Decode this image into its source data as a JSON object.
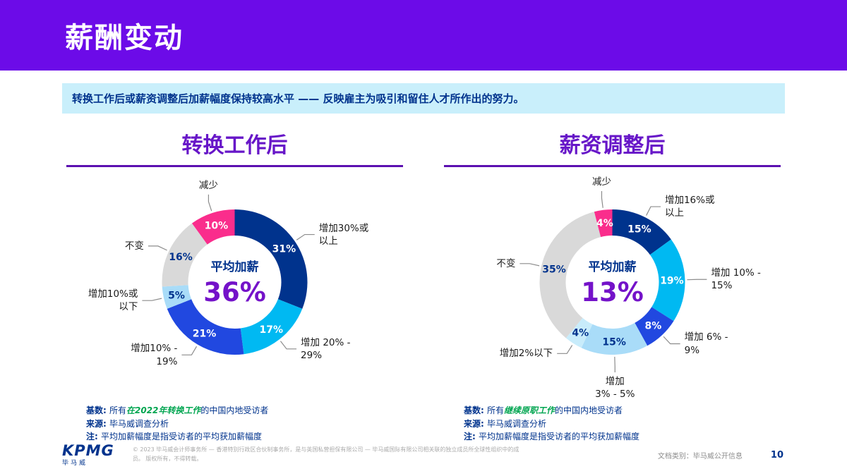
{
  "header": {
    "title": "薪酬变动"
  },
  "subtitle": "转换工作后或薪资调整后加薪幅度保持较高水平 —— 反映雇主为吸引和留住人才所作出的努力。",
  "colors": {
    "header_purple": "#6C0BE8",
    "title_purple": "#6716C8",
    "value_purple": "#7412C9",
    "kpmg_navy": "#00338D",
    "subtitle_bg": "#C9EFFB",
    "highlight_green": "#00A550",
    "pink": "#FA2D8C",
    "cyan": "#00B9F2",
    "mid_blue": "#2148E0",
    "pale_blue": "#A9DCF8",
    "gray": "#D9D9D9"
  },
  "chart_data": [
    {
      "type": "pie",
      "subtype": "donut",
      "title": "转换工作后",
      "center_label": "平均加薪",
      "center_value": "36%",
      "segments": [
        {
          "label": "增加30%或\n以上",
          "value": 31,
          "color": "#00338D",
          "text_color": "#FFFFFF"
        },
        {
          "label": "增加 20% -\n29%",
          "value": 17,
          "color": "#00B9F2",
          "text_color": "#FFFFFF"
        },
        {
          "label": "增加10% -\n19%",
          "value": 21,
          "color": "#2148E0",
          "text_color": "#FFFFFF"
        },
        {
          "label": "增加10%或\n以下",
          "value": 5,
          "color": "#A9DCF8",
          "text_color": "#00338D"
        },
        {
          "label": "不变",
          "value": 16,
          "color": "#D9D9D9",
          "text_color": "#00338D"
        },
        {
          "label": "减少",
          "value": 10,
          "color": "#FA2D8C",
          "text_color": "#FFFFFF"
        }
      ],
      "notes": [
        {
          "parts": [
            {
              "t": "基数: ",
              "s": "b"
            },
            {
              "t": "所有"
            },
            {
              "t": "在2022年转换工作",
              "s": "h"
            },
            {
              "t": "的中国内地受访者"
            }
          ]
        },
        {
          "parts": [
            {
              "t": "来源: ",
              "s": "b"
            },
            {
              "t": "毕马威调查分析"
            }
          ]
        },
        {
          "parts": [
            {
              "t": "注: ",
              "s": "b"
            },
            {
              "t": "平均加薪幅度是指受访者的平均获加薪幅度"
            }
          ]
        }
      ]
    },
    {
      "type": "pie",
      "subtype": "donut",
      "title": "薪资调整后",
      "center_label": "平均加薪",
      "center_value": "13%",
      "segments": [
        {
          "label": "增加16%或\n以上",
          "value": 15,
          "color": "#00338D",
          "text_color": "#FFFFFF"
        },
        {
          "label": "增加 10% -\n15%",
          "value": 19,
          "color": "#00B9F2",
          "text_color": "#FFFFFF"
        },
        {
          "label": "增加 6% -\n9%",
          "value": 8,
          "color": "#2148E0",
          "text_color": "#FFFFFF"
        },
        {
          "label": "增加\n3% - 5%",
          "value": 15,
          "color": "#A9DCF8",
          "text_color": "#00338D"
        },
        {
          "label": "增加2%以下",
          "value": 4,
          "color": "#C8ECFB",
          "text_color": "#00338D"
        },
        {
          "label": "不变",
          "value": 35,
          "color": "#D9D9D9",
          "text_color": "#00338D"
        },
        {
          "label": "减少",
          "value": 4,
          "color": "#FA2D8C",
          "text_color": "#FFFFFF"
        }
      ],
      "notes": [
        {
          "parts": [
            {
              "t": "基数: ",
              "s": "b"
            },
            {
              "t": "所有"
            },
            {
              "t": "继续原职工作",
              "s": "h"
            },
            {
              "t": "的中国内地受访者"
            }
          ]
        },
        {
          "parts": [
            {
              "t": "来源: ",
              "s": "b"
            },
            {
              "t": "毕马威调查分析"
            }
          ]
        },
        {
          "parts": [
            {
              "t": "注: ",
              "s": "b"
            },
            {
              "t": "平均加薪幅度是指受访者的平均获加薪幅度"
            }
          ]
        }
      ]
    }
  ],
  "footer": {
    "logo": "KPMG",
    "logo_sub": "毕马威",
    "copyright": "© 2023 毕马威会计师事务所 — 香港特别行政区合伙制事务所，是与英国私营担保有限公司 — 毕马威国际有限公司相关联的独立成员所全球性组织中的成员。 版权所有，不得转载。",
    "doc_class": "文档类别：毕马威公开信息",
    "page_number": "10"
  }
}
